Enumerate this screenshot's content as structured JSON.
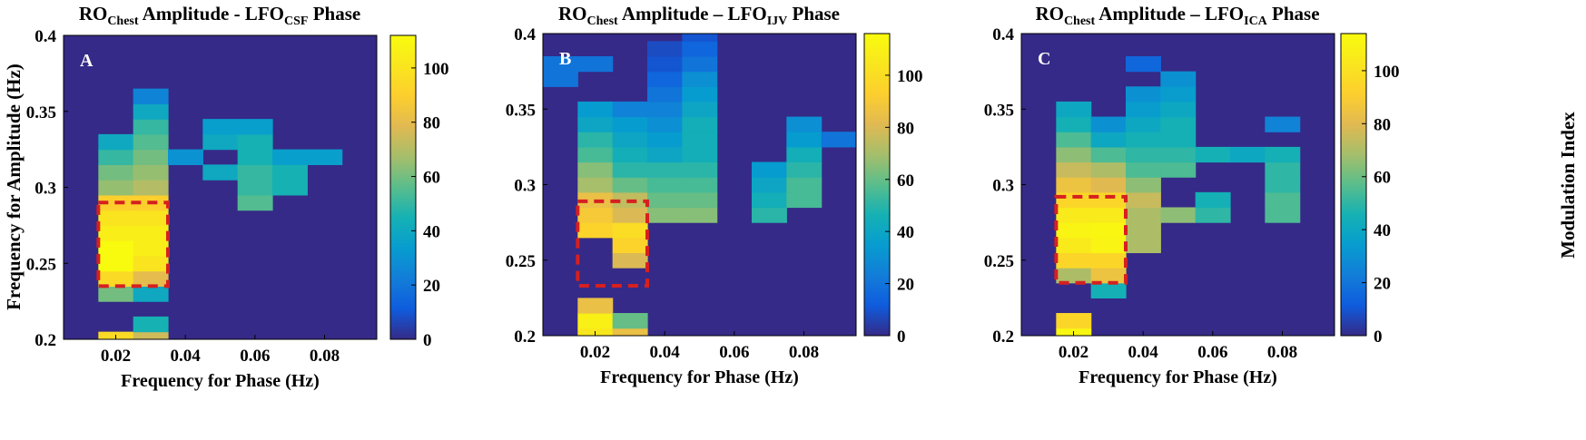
{
  "figure": {
    "shared_ylabel": "Frequency for Amplitude (Hz)",
    "shared_colorbar_label": "Modulation Index"
  },
  "chart_data": [
    {
      "type": "heatmap",
      "panel_label": "A",
      "title": {
        "main": "RO",
        "main_sub": "Chest",
        "mid": " Amplitude - LFO",
        "mid_sub": "CSF",
        "end": " Phase"
      },
      "xlabel": "Frequency for Phase (Hz)",
      "ylabel": "Frequency for Amplitude (Hz)",
      "xlim": [
        0.005,
        0.095
      ],
      "ylim": [
        0.2,
        0.4
      ],
      "x_ticks": [
        0.02,
        0.04,
        0.06,
        0.08
      ],
      "x_tick_labels": [
        "0.02",
        "0.04",
        "0.06",
        "0.08"
      ],
      "y_ticks": [
        0.2,
        0.25,
        0.3,
        0.35,
        0.4
      ],
      "y_tick_labels": [
        "0.2",
        "0.25",
        "0.3",
        "0.35",
        "0.4"
      ],
      "x_bins": [
        0.01,
        0.02,
        0.03,
        0.04,
        0.05,
        0.06,
        0.07,
        0.08,
        0.09
      ],
      "y_bins": [
        0.2,
        0.21,
        0.22,
        0.23,
        0.24,
        0.25,
        0.26,
        0.27,
        0.28,
        0.29,
        0.3,
        0.31,
        0.32,
        0.33,
        0.34,
        0.35,
        0.36,
        0.37,
        0.38,
        0.39,
        0.4
      ],
      "background_value": 0,
      "cells": [
        [
          0.02,
          0.2,
          95
        ],
        [
          0.02,
          0.23,
          60
        ],
        [
          0.02,
          0.24,
          95
        ],
        [
          0.02,
          0.25,
          112
        ],
        [
          0.02,
          0.26,
          112
        ],
        [
          0.02,
          0.27,
          105
        ],
        [
          0.02,
          0.28,
          100
        ],
        [
          0.02,
          0.29,
          90
        ],
        [
          0.02,
          0.3,
          65
        ],
        [
          0.02,
          0.31,
          60
        ],
        [
          0.02,
          0.32,
          50
        ],
        [
          0.02,
          0.33,
          40
        ],
        [
          0.03,
          0.2,
          75
        ],
        [
          0.03,
          0.21,
          45
        ],
        [
          0.03,
          0.23,
          40
        ],
        [
          0.03,
          0.24,
          80
        ],
        [
          0.03,
          0.25,
          100
        ],
        [
          0.03,
          0.26,
          105
        ],
        [
          0.03,
          0.27,
          105
        ],
        [
          0.03,
          0.28,
          100
        ],
        [
          0.03,
          0.29,
          90
        ],
        [
          0.03,
          0.3,
          70
        ],
        [
          0.03,
          0.31,
          65
        ],
        [
          0.03,
          0.32,
          60
        ],
        [
          0.03,
          0.33,
          55
        ],
        [
          0.03,
          0.34,
          50
        ],
        [
          0.03,
          0.35,
          40
        ],
        [
          0.03,
          0.36,
          25
        ],
        [
          0.04,
          0.32,
          30
        ],
        [
          0.05,
          0.31,
          40
        ],
        [
          0.05,
          0.33,
          40
        ],
        [
          0.05,
          0.34,
          35
        ],
        [
          0.06,
          0.29,
          55
        ],
        [
          0.06,
          0.3,
          50
        ],
        [
          0.06,
          0.31,
          50
        ],
        [
          0.06,
          0.32,
          45
        ],
        [
          0.06,
          0.33,
          45
        ],
        [
          0.06,
          0.34,
          35
        ],
        [
          0.07,
          0.3,
          45
        ],
        [
          0.07,
          0.31,
          45
        ],
        [
          0.07,
          0.32,
          35
        ],
        [
          0.08,
          0.32,
          35
        ]
      ],
      "color_range": [
        0,
        112
      ],
      "colorbar_ticks": [
        0,
        20,
        40,
        60,
        80,
        100
      ],
      "colorbar_tick_labels": [
        "0",
        "20",
        "40",
        "60",
        "80",
        "100"
      ],
      "highlight_box": {
        "x": [
          0.015,
          0.035
        ],
        "y": [
          0.235,
          0.29
        ],
        "color": "#d62020"
      }
    },
    {
      "type": "heatmap",
      "panel_label": "B",
      "title": {
        "main": "RO",
        "main_sub": "Chest",
        "mid": " Amplitude – LFO",
        "mid_sub": "IJV",
        "end": " Phase"
      },
      "xlabel": "Frequency for Phase (Hz)",
      "ylabel": "",
      "xlim": [
        0.005,
        0.095
      ],
      "ylim": [
        0.2,
        0.4
      ],
      "x_ticks": [
        0.02,
        0.04,
        0.06,
        0.08
      ],
      "x_tick_labels": [
        "0.02",
        "0.04",
        "0.06",
        "0.08"
      ],
      "y_ticks": [
        0.2,
        0.25,
        0.3,
        0.35,
        0.4
      ],
      "y_tick_labels": [
        "0.2",
        "0.25",
        "0.3",
        "0.35",
        "0.4"
      ],
      "x_bins": [
        0.01,
        0.02,
        0.03,
        0.04,
        0.05,
        0.06,
        0.07,
        0.08,
        0.09
      ],
      "y_bins": [
        0.2,
        0.21,
        0.22,
        0.23,
        0.24,
        0.25,
        0.26,
        0.27,
        0.28,
        0.29,
        0.3,
        0.31,
        0.32,
        0.33,
        0.34,
        0.35,
        0.36,
        0.37,
        0.38,
        0.39,
        0.4
      ],
      "background_value": 0,
      "cells": [
        [
          0.01,
          0.37,
          20
        ],
        [
          0.01,
          0.38,
          20
        ],
        [
          0.02,
          0.2,
          105
        ],
        [
          0.02,
          0.21,
          110
        ],
        [
          0.02,
          0.22,
          85
        ],
        [
          0.02,
          0.27,
          95
        ],
        [
          0.02,
          0.28,
          90
        ],
        [
          0.02,
          0.29,
          85
        ],
        [
          0.02,
          0.3,
          70
        ],
        [
          0.02,
          0.31,
          65
        ],
        [
          0.02,
          0.32,
          55
        ],
        [
          0.02,
          0.33,
          50
        ],
        [
          0.02,
          0.34,
          40
        ],
        [
          0.02,
          0.35,
          35
        ],
        [
          0.02,
          0.38,
          20
        ],
        [
          0.03,
          0.2,
          85
        ],
        [
          0.03,
          0.21,
          60
        ],
        [
          0.03,
          0.25,
          80
        ],
        [
          0.03,
          0.26,
          95
        ],
        [
          0.03,
          0.27,
          100
        ],
        [
          0.03,
          0.28,
          80
        ],
        [
          0.03,
          0.29,
          75
        ],
        [
          0.03,
          0.3,
          60
        ],
        [
          0.03,
          0.31,
          50
        ],
        [
          0.03,
          0.32,
          45
        ],
        [
          0.03,
          0.33,
          40
        ],
        [
          0.03,
          0.34,
          35
        ],
        [
          0.03,
          0.35,
          25
        ],
        [
          0.04,
          0.28,
          65
        ],
        [
          0.04,
          0.29,
          60
        ],
        [
          0.04,
          0.3,
          55
        ],
        [
          0.04,
          0.31,
          50
        ],
        [
          0.04,
          0.32,
          40
        ],
        [
          0.04,
          0.33,
          35
        ],
        [
          0.04,
          0.34,
          30
        ],
        [
          0.04,
          0.35,
          25
        ],
        [
          0.04,
          0.36,
          20
        ],
        [
          0.04,
          0.37,
          15
        ],
        [
          0.04,
          0.38,
          10
        ],
        [
          0.04,
          0.39,
          8
        ],
        [
          0.05,
          0.28,
          65
        ],
        [
          0.05,
          0.29,
          60
        ],
        [
          0.05,
          0.3,
          55
        ],
        [
          0.05,
          0.31,
          50
        ],
        [
          0.05,
          0.32,
          45
        ],
        [
          0.05,
          0.33,
          45
        ],
        [
          0.05,
          0.34,
          45
        ],
        [
          0.05,
          0.35,
          40
        ],
        [
          0.05,
          0.36,
          35
        ],
        [
          0.05,
          0.37,
          30
        ],
        [
          0.05,
          0.38,
          20
        ],
        [
          0.05,
          0.39,
          15
        ],
        [
          0.05,
          0.4,
          10
        ],
        [
          0.07,
          0.28,
          50
        ],
        [
          0.07,
          0.29,
          45
        ],
        [
          0.07,
          0.3,
          40
        ],
        [
          0.07,
          0.31,
          35
        ],
        [
          0.08,
          0.29,
          55
        ],
        [
          0.08,
          0.3,
          55
        ],
        [
          0.08,
          0.31,
          50
        ],
        [
          0.08,
          0.32,
          45
        ],
        [
          0.08,
          0.33,
          35
        ],
        [
          0.08,
          0.34,
          30
        ],
        [
          0.09,
          0.33,
          20
        ]
      ],
      "color_range": [
        0,
        116
      ],
      "colorbar_ticks": [
        0,
        20,
        40,
        60,
        80,
        100
      ],
      "colorbar_tick_labels": [
        "0",
        "20",
        "40",
        "60",
        "80",
        "100"
      ],
      "highlight_box": {
        "x": [
          0.015,
          0.035
        ],
        "y": [
          0.233,
          0.289
        ],
        "color": "#d62020"
      }
    },
    {
      "type": "heatmap",
      "panel_label": "C",
      "title": {
        "main": "RO",
        "main_sub": "Chest",
        "mid": " Amplitude – LFO",
        "mid_sub": "ICA",
        "end": " Phase"
      },
      "xlabel": "Frequency for Phase (Hz)",
      "ylabel": "",
      "xlim": [
        0.005,
        0.095
      ],
      "ylim": [
        0.2,
        0.4
      ],
      "x_ticks": [
        0.02,
        0.04,
        0.06,
        0.08
      ],
      "x_tick_labels": [
        "0.02",
        "0.04",
        "0.06",
        "0.08"
      ],
      "y_ticks": [
        0.2,
        0.25,
        0.3,
        0.35,
        0.4
      ],
      "y_tick_labels": [
        "0.2",
        "0.25",
        "0.3",
        "0.35",
        "0.4"
      ],
      "x_bins": [
        0.01,
        0.02,
        0.03,
        0.04,
        0.05,
        0.06,
        0.07,
        0.08,
        0.09
      ],
      "y_bins": [
        0.2,
        0.21,
        0.22,
        0.23,
        0.24,
        0.25,
        0.26,
        0.27,
        0.28,
        0.29,
        0.3,
        0.31,
        0.32,
        0.33,
        0.34,
        0.35,
        0.36,
        0.37,
        0.38,
        0.39,
        0.4
      ],
      "background_value": 0,
      "cells": [
        [
          0.02,
          0.2,
          112
        ],
        [
          0.02,
          0.21,
          95
        ],
        [
          0.02,
          0.24,
          70
        ],
        [
          0.02,
          0.25,
          95
        ],
        [
          0.02,
          0.26,
          105
        ],
        [
          0.02,
          0.27,
          110
        ],
        [
          0.02,
          0.28,
          105
        ],
        [
          0.02,
          0.29,
          95
        ],
        [
          0.02,
          0.3,
          85
        ],
        [
          0.02,
          0.31,
          75
        ],
        [
          0.02,
          0.32,
          65
        ],
        [
          0.02,
          0.33,
          55
        ],
        [
          0.02,
          0.34,
          45
        ],
        [
          0.02,
          0.35,
          40
        ],
        [
          0.03,
          0.23,
          45
        ],
        [
          0.03,
          0.24,
          85
        ],
        [
          0.03,
          0.25,
          95
        ],
        [
          0.03,
          0.26,
          110
        ],
        [
          0.03,
          0.27,
          112
        ],
        [
          0.03,
          0.28,
          105
        ],
        [
          0.03,
          0.29,
          95
        ],
        [
          0.03,
          0.3,
          80
        ],
        [
          0.03,
          0.31,
          70
        ],
        [
          0.03,
          0.32,
          55
        ],
        [
          0.03,
          0.33,
          40
        ],
        [
          0.03,
          0.34,
          30
        ],
        [
          0.04,
          0.26,
          70
        ],
        [
          0.04,
          0.27,
          70
        ],
        [
          0.04,
          0.28,
          70
        ],
        [
          0.04,
          0.29,
          75
        ],
        [
          0.04,
          0.3,
          65
        ],
        [
          0.04,
          0.31,
          55
        ],
        [
          0.04,
          0.32,
          50
        ],
        [
          0.04,
          0.33,
          45
        ],
        [
          0.04,
          0.34,
          40
        ],
        [
          0.04,
          0.35,
          35
        ],
        [
          0.04,
          0.36,
          30
        ],
        [
          0.04,
          0.38,
          15
        ],
        [
          0.05,
          0.28,
          65
        ],
        [
          0.05,
          0.31,
          55
        ],
        [
          0.05,
          0.32,
          50
        ],
        [
          0.05,
          0.33,
          45
        ],
        [
          0.05,
          0.34,
          45
        ],
        [
          0.05,
          0.35,
          40
        ],
        [
          0.05,
          0.36,
          35
        ],
        [
          0.05,
          0.37,
          30
        ],
        [
          0.06,
          0.28,
          50
        ],
        [
          0.06,
          0.29,
          45
        ],
        [
          0.06,
          0.32,
          45
        ],
        [
          0.07,
          0.32,
          40
        ],
        [
          0.08,
          0.28,
          55
        ],
        [
          0.08,
          0.29,
          55
        ],
        [
          0.08,
          0.3,
          50
        ],
        [
          0.08,
          0.31,
          50
        ],
        [
          0.08,
          0.32,
          45
        ],
        [
          0.08,
          0.34,
          25
        ]
      ],
      "color_range": [
        0,
        114
      ],
      "colorbar_ticks": [
        0,
        20,
        40,
        60,
        80,
        100
      ],
      "colorbar_tick_labels": [
        "0",
        "20",
        "40",
        "60",
        "80",
        "100"
      ],
      "colorbar_label": "Modulation Index",
      "highlight_box": {
        "x": [
          0.015,
          0.035
        ],
        "y": [
          0.235,
          0.292
        ],
        "color": "#d62020"
      }
    }
  ]
}
